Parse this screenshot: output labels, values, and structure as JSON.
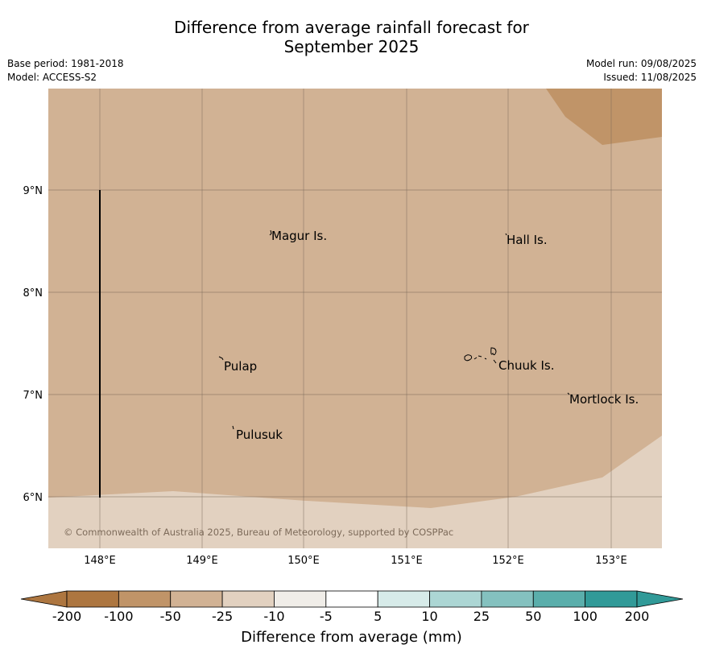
{
  "header": {
    "title_line1": "Difference from average rainfall forecast for",
    "title_line2": "September 2025",
    "base_period": "Base period: 1981-2018",
    "model": "Model: ACCESS-S2",
    "model_run": "Model run: 09/08/2025",
    "issued": "Issued: 11/08/2025"
  },
  "map": {
    "lon_ticks": [
      "148°E",
      "149°E",
      "150°E",
      "151°E",
      "152°E",
      "153°E"
    ],
    "lat_ticks": [
      "9°N",
      "8°N",
      "7°N",
      "6°N"
    ],
    "place_labels": [
      "Magur Is.",
      "Hall Is.",
      "Pulap",
      "Chuuk Is.",
      "Mortlock Is.",
      "Pulusuk"
    ],
    "copyright": "© Commonwealth of Australia 2025, Bureau of Meteorology, supported by COSPPac",
    "region_colors": {
      "dark_brown": "#c09468",
      "mid_brown": "#d1b294",
      "light_brown": "#e2d1c0"
    }
  },
  "colorbar": {
    "labels": [
      "-200",
      "-100",
      "-50",
      "-25",
      "-10",
      "-5",
      "5",
      "10",
      "25",
      "50",
      "100",
      "200"
    ],
    "colors": [
      "#ad7640",
      "#c09468",
      "#d1b294",
      "#e2d1c0",
      "#f0ede8",
      "#ffffff",
      "#d7ebe9",
      "#acd6d4",
      "#84c1bf",
      "#5aaeab",
      "#319a98"
    ],
    "extend_low_color": "#ad7640",
    "extend_high_color": "#319a98",
    "title": "Difference from average (mm)"
  }
}
